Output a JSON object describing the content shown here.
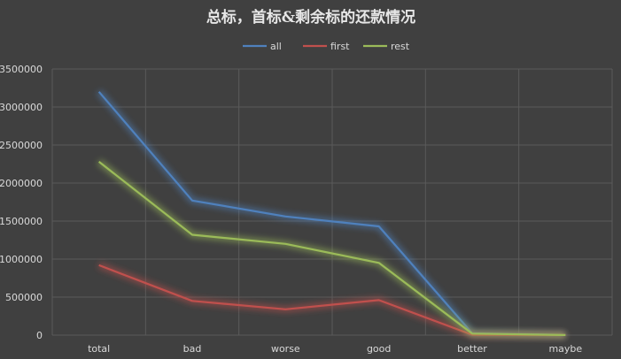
{
  "chart_data": {
    "type": "line",
    "title": "总标，首标&剩余标的还款情况",
    "xlabel": "",
    "ylabel": "",
    "categories": [
      "total",
      "bad",
      "worse",
      "good",
      "better",
      "maybe"
    ],
    "series": [
      {
        "name": "all",
        "color": "#4f81bd",
        "values": [
          3200000,
          1770000,
          1560000,
          1430000,
          25000,
          2000
        ]
      },
      {
        "name": "first",
        "color": "#c0504d",
        "values": [
          920000,
          450000,
          340000,
          460000,
          5000,
          1000
        ]
      },
      {
        "name": "rest",
        "color": "#9bbb59",
        "values": [
          2280000,
          1320000,
          1200000,
          950000,
          20000,
          1000
        ]
      }
    ],
    "ylim": [
      0,
      3500000
    ],
    "yticks": [
      0,
      500000,
      1000000,
      1500000,
      2000000,
      2500000,
      3000000,
      3500000
    ],
    "ytick_labels": [
      "0",
      "500000",
      "1000000",
      "1500000",
      "2000000",
      "2500000",
      "3000000",
      "3500000"
    ],
    "legend_position": "top",
    "grid": true,
    "colors": {
      "background": "#404040",
      "grid": "#5a5a5a",
      "text": "#d9d9d9",
      "title": "#e6e6e6"
    }
  }
}
